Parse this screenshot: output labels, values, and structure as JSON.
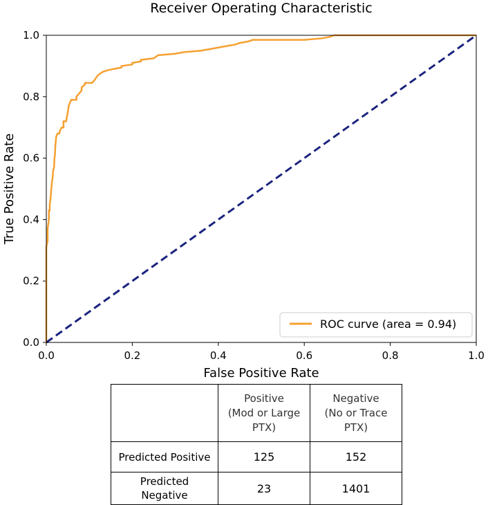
{
  "chart_data": {
    "type": "line",
    "title": "Receiver Operating Characteristic",
    "xlabel": "False Positive Rate",
    "ylabel": "True Positive Rate",
    "xlim": [
      0.0,
      1.0
    ],
    "ylim": [
      0.0,
      1.0
    ],
    "xticks": [
      "0.0",
      "0.2",
      "0.4",
      "0.6",
      "0.8",
      "1.0"
    ],
    "yticks": [
      "0.0",
      "0.2",
      "0.4",
      "0.6",
      "0.8",
      "1.0"
    ],
    "grid": false,
    "legend_position": "bottom-right",
    "series": [
      {
        "name": "ROC curve (area = 0.94)",
        "color": "#f5a030",
        "style": "solid",
        "x": [
          0.0,
          0.0,
          0.003,
          0.003,
          0.006,
          0.006,
          0.008,
          0.008,
          0.01,
          0.011,
          0.013,
          0.015,
          0.016,
          0.018,
          0.019,
          0.02,
          0.021,
          0.023,
          0.026,
          0.03,
          0.032,
          0.036,
          0.04,
          0.04,
          0.044,
          0.046,
          0.05,
          0.052,
          0.058,
          0.058,
          0.07,
          0.07,
          0.082,
          0.082,
          0.09,
          0.09,
          0.106,
          0.11,
          0.115,
          0.12,
          0.125,
          0.13,
          0.14,
          0.155,
          0.175,
          0.175,
          0.2,
          0.2,
          0.22,
          0.22,
          0.25,
          0.26,
          0.3,
          0.32,
          0.36,
          0.38,
          0.4,
          0.42,
          0.44,
          0.45,
          0.47,
          0.48,
          0.6,
          0.64,
          0.66,
          0.67,
          1.0
        ],
        "y": [
          0.0,
          0.31,
          0.33,
          0.37,
          0.4,
          0.43,
          0.43,
          0.45,
          0.47,
          0.49,
          0.52,
          0.54,
          0.56,
          0.57,
          0.6,
          0.61,
          0.64,
          0.67,
          0.68,
          0.68,
          0.69,
          0.7,
          0.7,
          0.72,
          0.72,
          0.72,
          0.75,
          0.77,
          0.79,
          0.79,
          0.79,
          0.8,
          0.82,
          0.83,
          0.84,
          0.845,
          0.845,
          0.85,
          0.86,
          0.87,
          0.875,
          0.88,
          0.885,
          0.89,
          0.895,
          0.9,
          0.905,
          0.91,
          0.915,
          0.92,
          0.925,
          0.935,
          0.94,
          0.945,
          0.95,
          0.955,
          0.96,
          0.965,
          0.97,
          0.975,
          0.98,
          0.985,
          0.985,
          0.99,
          0.995,
          1.0,
          1.0
        ]
      },
      {
        "name": "chance",
        "color": "#1a237e",
        "style": "dashed",
        "x": [
          0.0,
          1.0
        ],
        "y": [
          0.0,
          1.0
        ]
      }
    ]
  },
  "table": {
    "columns": [
      "",
      "Positive (Mod or Large PTX)",
      "Negative (No or Trace PTX)"
    ],
    "col_pos_lines": [
      "Positive",
      "(Mod or Large",
      "PTX)"
    ],
    "col_neg_lines": [
      "Negative",
      "(No or Trace",
      "PTX)"
    ],
    "rows": [
      {
        "label_lines": [
          "Predicted Positive"
        ],
        "positive": "125",
        "negative": "152"
      },
      {
        "label_lines": [
          "Predicted",
          "Negative"
        ],
        "positive": "23",
        "negative": "1401"
      }
    ]
  }
}
